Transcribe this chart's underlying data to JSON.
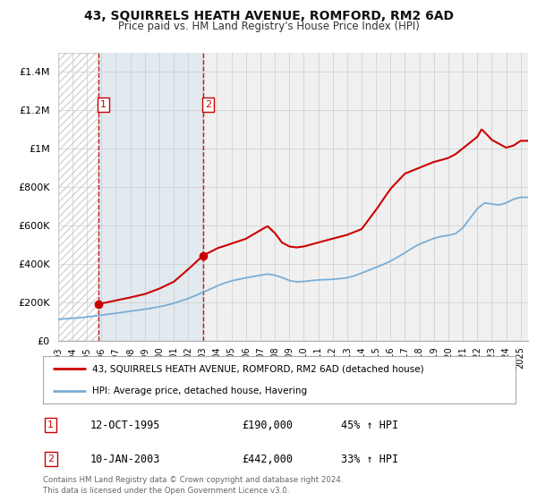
{
  "title": "43, SQUIRRELS HEATH AVENUE, ROMFORD, RM2 6AD",
  "subtitle": "Price paid vs. HM Land Registry's House Price Index (HPI)",
  "red_line_color": "#cc0000",
  "blue_line_color": "#7aadd4",
  "background_color": "#ffffff",
  "plot_bg_color": "#f0f0f0",
  "shaded_region_color": "#dde8f0",
  "grid_color": "#cccccc",
  "ylim": [
    0,
    1500000
  ],
  "xlim_start": 1993.0,
  "xlim_end": 2025.5,
  "purchase1_x": 1995.79,
  "purchase1_y": 190000,
  "purchase2_x": 2003.04,
  "purchase2_y": 442000,
  "purchase1_date": "12-OCT-1995",
  "purchase1_price": "£190,000",
  "purchase1_hpi": "45% ↑ HPI",
  "purchase2_date": "10-JAN-2003",
  "purchase2_price": "£442,000",
  "purchase2_hpi": "33% ↑ HPI",
  "legend_line1": "43, SQUIRRELS HEATH AVENUE, ROMFORD, RM2 6AD (detached house)",
  "legend_line2": "HPI: Average price, detached house, Havering",
  "footnote": "Contains HM Land Registry data © Crown copyright and database right 2024.\nThis data is licensed under the Open Government Licence v3.0.",
  "ytick_labels": [
    "£0",
    "£200K",
    "£400K",
    "£600K",
    "£800K",
    "£1M",
    "£1.2M",
    "£1.4M"
  ],
  "ytick_values": [
    0,
    200000,
    400000,
    600000,
    800000,
    1000000,
    1200000,
    1400000
  ],
  "xtick_labels": [
    "1993",
    "1994",
    "1995",
    "1996",
    "1997",
    "1998",
    "1999",
    "2000",
    "2001",
    "2002",
    "2003",
    "2004",
    "2005",
    "2006",
    "2007",
    "2008",
    "2009",
    "2010",
    "2011",
    "2012",
    "2013",
    "2014",
    "2015",
    "2016",
    "2017",
    "2018",
    "2019",
    "2020",
    "2021",
    "2022",
    "2023",
    "2024",
    "2025"
  ],
  "xtick_values": [
    1993,
    1994,
    1995,
    1996,
    1997,
    1998,
    1999,
    2000,
    2001,
    2002,
    2003,
    2004,
    2005,
    2006,
    2007,
    2008,
    2009,
    2010,
    2011,
    2012,
    2013,
    2014,
    2015,
    2016,
    2017,
    2018,
    2019,
    2020,
    2021,
    2022,
    2023,
    2024,
    2025
  ],
  "red_key_t": [
    1995.79,
    1997,
    1998,
    1999,
    2000,
    2001,
    2002,
    2003.04,
    2004,
    2005,
    2006,
    2007,
    2007.5,
    2008,
    2008.5,
    2009,
    2009.5,
    2010,
    2011,
    2012,
    2013,
    2014,
    2015,
    2016,
    2016.5,
    2017,
    2018,
    2019,
    2020,
    2020.5,
    2021,
    2021.5,
    2022,
    2022.3,
    2022.7,
    2023,
    2023.5,
    2024,
    2024.5,
    2025
  ],
  "red_key_v": [
    190000,
    210000,
    225000,
    242000,
    270000,
    305000,
    370000,
    442000,
    480000,
    505000,
    530000,
    575000,
    595000,
    560000,
    510000,
    490000,
    485000,
    490000,
    510000,
    530000,
    550000,
    580000,
    680000,
    790000,
    830000,
    870000,
    900000,
    930000,
    950000,
    970000,
    1000000,
    1030000,
    1060000,
    1100000,
    1070000,
    1045000,
    1025000,
    1005000,
    1015000,
    1040000
  ],
  "hpi_key_t": [
    1993,
    1993.5,
    1994,
    1994.5,
    1995,
    1995.5,
    1996,
    1996.5,
    1997,
    1997.5,
    1998,
    1998.5,
    1999,
    1999.5,
    2000,
    2000.5,
    2001,
    2001.5,
    2002,
    2002.5,
    2003,
    2003.5,
    2004,
    2004.5,
    2005,
    2005.5,
    2006,
    2006.5,
    2007,
    2007.5,
    2008,
    2008.5,
    2009,
    2009.5,
    2010,
    2010.5,
    2011,
    2011.5,
    2012,
    2012.5,
    2013,
    2013.5,
    2014,
    2014.5,
    2015,
    2015.5,
    2016,
    2016.5,
    2017,
    2017.5,
    2018,
    2018.5,
    2019,
    2019.5,
    2020,
    2020.5,
    2021,
    2021.5,
    2022,
    2022.5,
    2023,
    2023.5,
    2024,
    2024.5,
    2025
  ],
  "hpi_key_v": [
    112000,
    114000,
    117000,
    120000,
    124000,
    128000,
    133000,
    138000,
    143000,
    148000,
    153000,
    158000,
    164000,
    170000,
    177000,
    185000,
    195000,
    207000,
    220000,
    235000,
    252000,
    268000,
    285000,
    300000,
    312000,
    320000,
    328000,
    335000,
    342000,
    348000,
    342000,
    330000,
    315000,
    308000,
    310000,
    315000,
    318000,
    320000,
    322000,
    325000,
    330000,
    340000,
    355000,
    370000,
    385000,
    400000,
    418000,
    438000,
    460000,
    485000,
    505000,
    520000,
    535000,
    545000,
    550000,
    560000,
    590000,
    640000,
    690000,
    720000,
    715000,
    710000,
    720000,
    740000,
    750000
  ]
}
